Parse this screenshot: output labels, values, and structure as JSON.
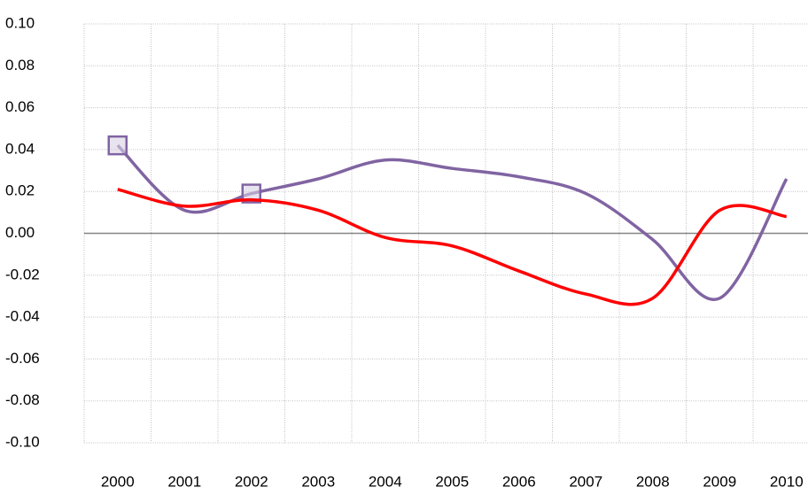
{
  "chart_data": {
    "type": "line",
    "categories": [
      "2000",
      "2001",
      "2002",
      "2003",
      "2004",
      "2005",
      "2006",
      "2007",
      "2008",
      "2009",
      "2010"
    ],
    "series": [
      {
        "color": "#8064a2",
        "values": [
          0.042,
          0.011,
          0.019,
          0.026,
          0.035,
          0.031,
          0.027,
          0.019,
          -0.003,
          -0.031,
          0.026
        ],
        "marker_indices": [
          0,
          2
        ]
      },
      {
        "color": "#ff0000",
        "values": [
          0.021,
          0.013,
          0.016,
          0.011,
          -0.002,
          -0.006,
          -0.018,
          -0.029,
          -0.031,
          0.011,
          0.008
        ]
      }
    ],
    "ylim": [
      -0.1,
      0.1
    ],
    "yticks": [
      {
        "value": -0.1,
        "label": "-0.10"
      },
      {
        "value": -0.08,
        "label": "-0.08"
      },
      {
        "value": -0.06,
        "label": "-0.06"
      },
      {
        "value": -0.04,
        "label": "-0.04"
      },
      {
        "value": -0.02,
        "label": "-0.02"
      },
      {
        "value": 0,
        "label": "0.00"
      },
      {
        "value": 0.02,
        "label": "0.02"
      },
      {
        "value": 0.04,
        "label": "0.04"
      },
      {
        "value": 0.06,
        "label": "0.06"
      },
      {
        "value": 0.08,
        "label": "0.08"
      },
      {
        "value": 0.1,
        "label": "0.10"
      }
    ],
    "grid": true,
    "smooth": true
  }
}
